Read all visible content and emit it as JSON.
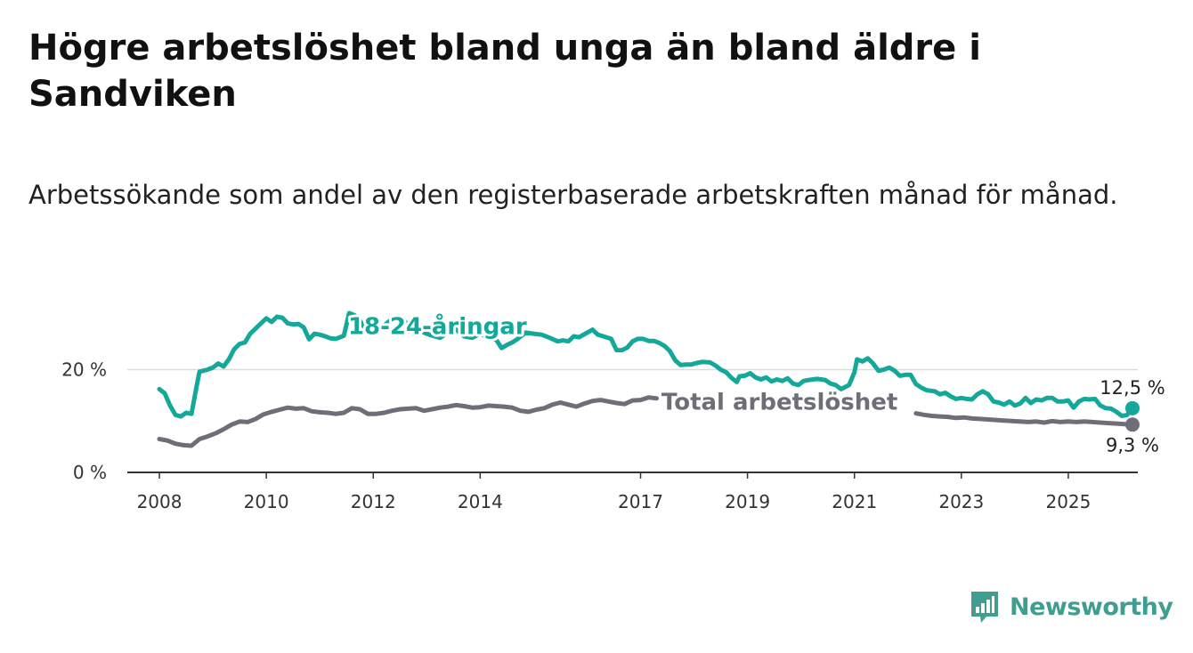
{
  "title": "Högre arbetslöshet bland unga än bland äldre i Sandviken",
  "subtitle": "Arbetssökande som andel av den registerbaserade arbetskraften månad för månad.",
  "brand": {
    "name": "Newsworthy",
    "icon": "bar-chart-logo-icon",
    "color": "#3f9e90"
  },
  "chart_data": {
    "type": "line",
    "ylim": [
      0,
      40
    ],
    "y_ticks": [
      0,
      20
    ],
    "y_tick_labels": [
      "0 %",
      "20 %"
    ],
    "x_range": [
      2007.4,
      2026.3
    ],
    "x_ticks": [
      2008,
      2010,
      2012,
      2014,
      2017,
      2019,
      2021,
      2023,
      2025
    ],
    "grid": true,
    "series": [
      {
        "name": "18-24-åringar",
        "color": "#14a89a",
        "end_label": "12,5 %",
        "points": [
          [
            2008.0,
            16.2
          ],
          [
            2008.1,
            15.4
          ],
          [
            2008.2,
            13.0
          ],
          [
            2008.3,
            11.2
          ],
          [
            2008.4,
            10.9
          ],
          [
            2008.5,
            11.6
          ],
          [
            2008.6,
            11.4
          ],
          [
            2008.7,
            17.0
          ],
          [
            2008.75,
            19.6
          ],
          [
            2008.9,
            20.0
          ],
          [
            2009.0,
            20.4
          ],
          [
            2009.1,
            21.2
          ],
          [
            2009.2,
            20.6
          ],
          [
            2009.3,
            22.0
          ],
          [
            2009.4,
            24.0
          ],
          [
            2009.5,
            25.0
          ],
          [
            2009.6,
            25.3
          ],
          [
            2009.7,
            27.0
          ],
          [
            2009.8,
            28.0
          ],
          [
            2009.9,
            29.0
          ],
          [
            2010.0,
            30.0
          ],
          [
            2010.1,
            29.3
          ],
          [
            2010.2,
            30.3
          ],
          [
            2010.3,
            30.1
          ],
          [
            2010.4,
            29.0
          ],
          [
            2010.5,
            28.8
          ],
          [
            2010.6,
            28.9
          ],
          [
            2010.7,
            28.2
          ],
          [
            2010.8,
            25.9
          ],
          [
            2010.9,
            27.0
          ],
          [
            2011.0,
            26.8
          ],
          [
            2011.1,
            26.5
          ],
          [
            2011.2,
            26.1
          ],
          [
            2011.3,
            26.0
          ],
          [
            2011.45,
            26.6
          ],
          [
            2011.55,
            31.0
          ],
          [
            2011.65,
            30.6
          ],
          [
            2011.75,
            29.5
          ],
          [
            2011.85,
            28.0
          ],
          [
            2011.95,
            26.8
          ],
          [
            2012.05,
            28.2
          ],
          [
            2012.15,
            28.0
          ],
          [
            2012.25,
            29.0
          ],
          [
            2012.35,
            29.8
          ],
          [
            2012.5,
            30.1
          ],
          [
            2012.6,
            29.3
          ],
          [
            2012.7,
            27.8
          ],
          [
            2012.85,
            28.2
          ],
          [
            2012.95,
            27.2
          ],
          [
            2013.05,
            26.8
          ],
          [
            2013.15,
            26.5
          ],
          [
            2013.25,
            26.2
          ],
          [
            2013.4,
            27.2
          ],
          [
            2013.55,
            27.8
          ],
          [
            2013.7,
            26.5
          ],
          [
            2013.85,
            26.2
          ],
          [
            2014.0,
            27.0
          ],
          [
            2014.15,
            26.2
          ],
          [
            2014.3,
            25.8
          ],
          [
            2014.4,
            24.2
          ],
          [
            2014.5,
            24.8
          ],
          [
            2014.6,
            25.3
          ],
          [
            2014.7,
            26.0
          ],
          [
            2014.85,
            27.2
          ],
          [
            2015.0,
            27.0
          ],
          [
            2015.15,
            26.8
          ],
          [
            2015.3,
            26.2
          ],
          [
            2015.45,
            25.5
          ],
          [
            2015.55,
            25.7
          ],
          [
            2015.65,
            25.5
          ],
          [
            2015.75,
            26.5
          ],
          [
            2015.85,
            26.3
          ],
          [
            2016.0,
            27.2
          ],
          [
            2016.1,
            27.8
          ],
          [
            2016.2,
            26.8
          ],
          [
            2016.3,
            26.5
          ],
          [
            2016.45,
            26.0
          ],
          [
            2016.55,
            23.8
          ],
          [
            2016.65,
            23.8
          ],
          [
            2016.75,
            24.3
          ],
          [
            2016.85,
            25.5
          ],
          [
            2016.95,
            26.0
          ],
          [
            2017.05,
            26.0
          ],
          [
            2017.15,
            25.6
          ],
          [
            2017.25,
            25.6
          ],
          [
            2017.35,
            25.2
          ],
          [
            2017.45,
            24.6
          ],
          [
            2017.55,
            23.6
          ],
          [
            2017.65,
            21.8
          ],
          [
            2017.75,
            20.9
          ],
          [
            2017.85,
            21.0
          ],
          [
            2017.95,
            21.0
          ],
          [
            2018.05,
            21.3
          ],
          [
            2018.15,
            21.5
          ],
          [
            2018.3,
            21.4
          ],
          [
            2018.4,
            20.8
          ],
          [
            2018.5,
            20.0
          ],
          [
            2018.6,
            19.5
          ],
          [
            2018.7,
            18.4
          ],
          [
            2018.8,
            17.6
          ],
          [
            2018.85,
            18.7
          ],
          [
            2018.95,
            18.8
          ],
          [
            2019.05,
            19.3
          ],
          [
            2019.15,
            18.5
          ],
          [
            2019.25,
            18.1
          ],
          [
            2019.35,
            18.5
          ],
          [
            2019.45,
            17.7
          ],
          [
            2019.55,
            18.1
          ],
          [
            2019.65,
            17.8
          ],
          [
            2019.75,
            18.3
          ],
          [
            2019.85,
            17.3
          ],
          [
            2019.95,
            17.0
          ],
          [
            2020.05,
            17.8
          ],
          [
            2020.15,
            18.0
          ],
          [
            2020.3,
            18.2
          ],
          [
            2020.45,
            18.0
          ],
          [
            2020.55,
            17.3
          ],
          [
            2020.65,
            17.0
          ],
          [
            2020.75,
            16.2
          ],
          [
            2020.9,
            17.0
          ],
          [
            2021.0,
            19.5
          ],
          [
            2021.05,
            22.0
          ],
          [
            2021.15,
            21.6
          ],
          [
            2021.25,
            22.2
          ],
          [
            2021.35,
            21.2
          ],
          [
            2021.45,
            19.8
          ],
          [
            2021.55,
            20.0
          ],
          [
            2021.65,
            20.4
          ],
          [
            2021.75,
            19.8
          ],
          [
            2021.85,
            18.8
          ],
          [
            2021.95,
            19.0
          ],
          [
            2022.05,
            19.0
          ],
          [
            2022.15,
            17.2
          ],
          [
            2022.25,
            16.5
          ],
          [
            2022.35,
            16.0
          ],
          [
            2022.5,
            15.8
          ],
          [
            2022.6,
            15.2
          ],
          [
            2022.7,
            15.5
          ],
          [
            2022.8,
            14.8
          ],
          [
            2022.9,
            14.3
          ],
          [
            2023.0,
            14.5
          ],
          [
            2023.1,
            14.3
          ],
          [
            2023.2,
            14.2
          ],
          [
            2023.3,
            15.2
          ],
          [
            2023.4,
            15.8
          ],
          [
            2023.5,
            15.2
          ],
          [
            2023.6,
            13.8
          ],
          [
            2023.7,
            13.6
          ],
          [
            2023.8,
            13.2
          ],
          [
            2023.9,
            13.8
          ],
          [
            2024.0,
            13.0
          ],
          [
            2024.1,
            13.4
          ],
          [
            2024.2,
            14.5
          ],
          [
            2024.3,
            13.5
          ],
          [
            2024.4,
            14.2
          ],
          [
            2024.5,
            14.0
          ],
          [
            2024.6,
            14.5
          ],
          [
            2024.7,
            14.5
          ],
          [
            2024.8,
            13.8
          ],
          [
            2024.9,
            13.8
          ],
          [
            2025.0,
            14.0
          ],
          [
            2025.1,
            12.6
          ],
          [
            2025.2,
            13.8
          ],
          [
            2025.3,
            14.3
          ],
          [
            2025.4,
            14.2
          ],
          [
            2025.5,
            14.3
          ],
          [
            2025.6,
            13.0
          ],
          [
            2025.7,
            12.5
          ],
          [
            2025.8,
            12.4
          ],
          [
            2025.9,
            11.8
          ],
          [
            2026.0,
            11.0
          ],
          [
            2026.1,
            11.2
          ],
          [
            2026.2,
            12.5
          ]
        ]
      },
      {
        "name": "Total arbetslöshet",
        "color": "#6e6e78",
        "end_label": "9,3 %",
        "points": [
          [
            2008.0,
            6.5
          ],
          [
            2008.15,
            6.2
          ],
          [
            2008.3,
            5.6
          ],
          [
            2008.45,
            5.3
          ],
          [
            2008.6,
            5.2
          ],
          [
            2008.75,
            6.5
          ],
          [
            2008.9,
            7.0
          ],
          [
            2009.05,
            7.6
          ],
          [
            2009.2,
            8.4
          ],
          [
            2009.35,
            9.3
          ],
          [
            2009.5,
            9.9
          ],
          [
            2009.65,
            9.8
          ],
          [
            2009.8,
            10.4
          ],
          [
            2009.95,
            11.3
          ],
          [
            2010.1,
            11.8
          ],
          [
            2010.25,
            12.2
          ],
          [
            2010.4,
            12.6
          ],
          [
            2010.55,
            12.4
          ],
          [
            2010.7,
            12.5
          ],
          [
            2010.85,
            11.9
          ],
          [
            2011.0,
            11.7
          ],
          [
            2011.15,
            11.6
          ],
          [
            2011.3,
            11.4
          ],
          [
            2011.45,
            11.6
          ],
          [
            2011.6,
            12.5
          ],
          [
            2011.75,
            12.3
          ],
          [
            2011.9,
            11.4
          ],
          [
            2012.05,
            11.4
          ],
          [
            2012.2,
            11.6
          ],
          [
            2012.35,
            12.0
          ],
          [
            2012.5,
            12.3
          ],
          [
            2012.65,
            12.4
          ],
          [
            2012.8,
            12.5
          ],
          [
            2012.95,
            12.0
          ],
          [
            2013.1,
            12.3
          ],
          [
            2013.25,
            12.6
          ],
          [
            2013.4,
            12.8
          ],
          [
            2013.55,
            13.1
          ],
          [
            2013.7,
            12.9
          ],
          [
            2013.85,
            12.6
          ],
          [
            2014.0,
            12.7
          ],
          [
            2014.15,
            13.0
          ],
          [
            2014.3,
            12.9
          ],
          [
            2014.45,
            12.8
          ],
          [
            2014.6,
            12.6
          ],
          [
            2014.75,
            12.0
          ],
          [
            2014.9,
            11.8
          ],
          [
            2015.05,
            12.2
          ],
          [
            2015.2,
            12.5
          ],
          [
            2015.35,
            13.2
          ],
          [
            2015.5,
            13.6
          ],
          [
            2015.65,
            13.2
          ],
          [
            2015.8,
            12.8
          ],
          [
            2015.95,
            13.4
          ],
          [
            2016.1,
            13.9
          ],
          [
            2016.25,
            14.1
          ],
          [
            2016.4,
            13.8
          ],
          [
            2016.55,
            13.5
          ],
          [
            2016.7,
            13.3
          ],
          [
            2016.85,
            14.0
          ],
          [
            2017.0,
            14.1
          ],
          [
            2017.15,
            14.6
          ],
          [
            2017.3,
            14.4
          ],
          [
            2022.15,
            11.5
          ],
          [
            2022.3,
            11.2
          ],
          [
            2022.45,
            11.0
          ],
          [
            2022.6,
            10.9
          ],
          [
            2022.75,
            10.8
          ],
          [
            2022.9,
            10.6
          ],
          [
            2023.05,
            10.7
          ],
          [
            2023.2,
            10.5
          ],
          [
            2023.35,
            10.4
          ],
          [
            2023.5,
            10.3
          ],
          [
            2023.65,
            10.2
          ],
          [
            2023.8,
            10.1
          ],
          [
            2023.95,
            10.0
          ],
          [
            2024.1,
            9.9
          ],
          [
            2024.25,
            9.8
          ],
          [
            2024.4,
            9.9
          ],
          [
            2024.55,
            9.7
          ],
          [
            2024.7,
            10.0
          ],
          [
            2024.85,
            9.8
          ],
          [
            2025.0,
            9.9
          ],
          [
            2025.15,
            9.8
          ],
          [
            2025.3,
            9.9
          ],
          [
            2025.45,
            9.8
          ],
          [
            2025.6,
            9.7
          ],
          [
            2025.75,
            9.6
          ],
          [
            2025.9,
            9.5
          ],
          [
            2026.05,
            9.4
          ],
          [
            2026.2,
            9.3
          ]
        ]
      }
    ]
  }
}
